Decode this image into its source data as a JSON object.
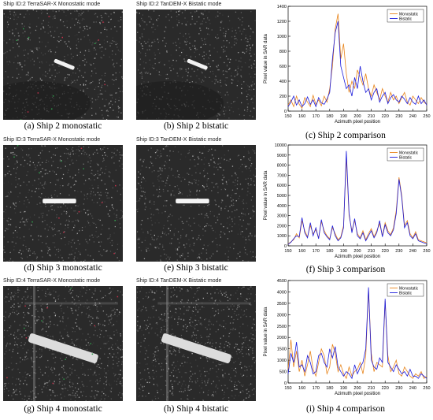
{
  "sar_titles": [
    "Ship ID:2 TerraSAR-X Monostatic mode",
    "Ship ID:2 TanDEM-X Bistatic mode",
    "Ship ID:3 TerraSAR-X Monostatic mode",
    "Ship ID:3 TanDEM-X Bistatic mode",
    "Ship ID:4 TerraSAR-X Monostatic mode",
    "Ship ID:4 TanDEM-X Bistatic mode"
  ],
  "captions": [
    "(a) Ship 2 monostatic",
    "(b) Ship 2 bistatic",
    "(c) Ship 2  comparison",
    "(d) Ship 3 monostatic",
    "(e) Ship 3 bistatic",
    "(f) Ship 3  comparison",
    "(g) Ship 4 monostatic",
    "(h) Ship 4 bistatic",
    "(i) Ship 4  comparison"
  ],
  "colors": {
    "monostatic": "#e8841a",
    "bistatic": "#1a1adc",
    "sar_bg": "#2a2a2a"
  },
  "chart_data": [
    {
      "type": "line",
      "xlabel": "Azimuth pixel position",
      "ylabel": "Pixel value in SAR data",
      "xlim": [
        150,
        250
      ],
      "ylim": [
        0,
        1400
      ],
      "xticks": [
        150,
        160,
        170,
        180,
        190,
        200,
        210,
        220,
        230,
        240,
        250
      ],
      "yticks": [
        0,
        200,
        400,
        600,
        800,
        1000,
        1200,
        1400
      ],
      "legend_position": "top-right",
      "x": [
        150,
        152,
        154,
        156,
        158,
        160,
        162,
        164,
        166,
        168,
        170,
        172,
        174,
        176,
        178,
        180,
        182,
        184,
        186,
        188,
        190,
        192,
        194,
        196,
        198,
        200,
        202,
        204,
        206,
        208,
        210,
        212,
        214,
        216,
        218,
        220,
        222,
        224,
        226,
        228,
        230,
        232,
        234,
        236,
        238,
        240,
        242,
        244,
        246,
        248,
        250
      ],
      "series": [
        {
          "name": "Monostatic",
          "values": [
            80,
            150,
            60,
            200,
            90,
            40,
            180,
            120,
            60,
            210,
            90,
            150,
            70,
            200,
            120,
            300,
            600,
            1100,
            1300,
            700,
            900,
            500,
            250,
            400,
            300,
            550,
            450,
            350,
            500,
            300,
            200,
            350,
            250,
            150,
            300,
            200,
            120,
            250,
            150,
            200,
            100,
            180,
            250,
            120,
            80,
            200,
            150,
            100,
            180,
            120,
            90
          ]
        },
        {
          "name": "Bistatic",
          "values": [
            60,
            120,
            200,
            80,
            150,
            60,
            100,
            190,
            90,
            150,
            60,
            180,
            110,
            90,
            160,
            250,
            700,
            1050,
            1200,
            600,
            450,
            300,
            350,
            200,
            450,
            300,
            600,
            400,
            250,
            300,
            150,
            250,
            300,
            120,
            200,
            250,
            100,
            180,
            220,
            150,
            120,
            200,
            160,
            100,
            180,
            120,
            90,
            200,
            100,
            150,
            80
          ]
        }
      ]
    },
    {
      "type": "line",
      "xlabel": "Azimuth pixel position",
      "ylabel": "Pixel value in SAR data",
      "xlim": [
        150,
        250
      ],
      "ylim": [
        0,
        10000
      ],
      "xticks": [
        150,
        160,
        170,
        180,
        190,
        200,
        210,
        220,
        230,
        240,
        250
      ],
      "yticks": [
        0,
        1000,
        2000,
        3000,
        4000,
        5000,
        6000,
        7000,
        8000,
        9000,
        10000
      ],
      "legend_position": "top-right",
      "x": [
        150,
        152,
        154,
        156,
        158,
        160,
        162,
        164,
        166,
        168,
        170,
        172,
        174,
        176,
        178,
        180,
        182,
        184,
        186,
        188,
        190,
        192,
        194,
        196,
        198,
        200,
        202,
        204,
        206,
        208,
        210,
        212,
        214,
        216,
        218,
        220,
        222,
        224,
        226,
        228,
        230,
        232,
        234,
        236,
        238,
        240,
        242,
        244,
        246,
        248,
        250
      ],
      "series": [
        {
          "name": "Monostatic",
          "values": [
            200,
            400,
            600,
            1200,
            800,
            2500,
            1500,
            900,
            2000,
            1200,
            1600,
            800,
            2400,
            1500,
            1000,
            700,
            1800,
            1200,
            600,
            900,
            2000,
            8800,
            3000,
            1500,
            2500,
            1200,
            800,
            1500,
            600,
            1200,
            1700,
            900,
            1500,
            2200,
            1000,
            2300,
            1500,
            1100,
            1800,
            3500,
            6800,
            5000,
            2000,
            2500,
            1200,
            800,
            1400,
            600,
            500,
            400,
            300
          ]
        },
        {
          "name": "Bistatic",
          "values": [
            150,
            350,
            700,
            1000,
            900,
            2800,
            1300,
            800,
            2300,
            1000,
            1800,
            700,
            2600,
            1300,
            900,
            600,
            2000,
            1000,
            500,
            800,
            1800,
            9400,
            3200,
            1300,
            2700,
            1000,
            700,
            1300,
            500,
            1000,
            1500,
            800,
            1300,
            2500,
            900,
            2100,
            1300,
            1000,
            1600,
            3200,
            6600,
            4800,
            1800,
            2300,
            1000,
            700,
            1200,
            500,
            400,
            300,
            200
          ]
        }
      ]
    },
    {
      "type": "line",
      "xlabel": "Azimuth pixel position",
      "ylabel": "Pixel value in SAR data",
      "xlim": [
        150,
        250
      ],
      "ylim": [
        0,
        4500
      ],
      "xticks": [
        150,
        160,
        170,
        180,
        190,
        200,
        210,
        220,
        230,
        240,
        250
      ],
      "yticks": [
        0,
        500,
        1000,
        1500,
        2000,
        2500,
        3000,
        3500,
        4000,
        4500
      ],
      "legend_position": "top-right",
      "x": [
        150,
        152,
        154,
        156,
        158,
        160,
        162,
        164,
        166,
        168,
        170,
        172,
        174,
        176,
        178,
        180,
        182,
        184,
        186,
        188,
        190,
        192,
        194,
        196,
        198,
        200,
        202,
        204,
        206,
        208,
        210,
        212,
        214,
        216,
        218,
        220,
        222,
        224,
        226,
        228,
        230,
        232,
        234,
        236,
        238,
        240,
        242,
        244,
        246,
        248,
        250
      ],
      "series": [
        {
          "name": "Monostatic",
          "values": [
            600,
            1900,
            700,
            1400,
            500,
            1000,
            300,
            800,
            1400,
            600,
            300,
            900,
            1500,
            1200,
            400,
            700,
            1700,
            1300,
            500,
            800,
            400,
            200,
            700,
            300,
            500,
            600,
            900,
            400,
            1200,
            4100,
            1300,
            500,
            900,
            800,
            700,
            3600,
            1200,
            500,
            700,
            1000,
            400,
            300,
            700,
            500,
            300,
            200,
            400,
            300,
            500,
            200,
            300
          ]
        },
        {
          "name": "Bistatic",
          "values": [
            400,
            1300,
            900,
            1800,
            700,
            800,
            500,
            1200,
            900,
            400,
            500,
            1200,
            1300,
            900,
            700,
            1500,
            1100,
            1600,
            700,
            500,
            300,
            500,
            400,
            200,
            800,
            400,
            700,
            900,
            1500,
            4200,
            1000,
            700,
            600,
            1100,
            900,
            3700,
            900,
            700,
            500,
            800,
            600,
            400,
            500,
            300,
            600,
            300,
            300,
            200,
            400,
            300,
            200
          ]
        }
      ]
    }
  ]
}
